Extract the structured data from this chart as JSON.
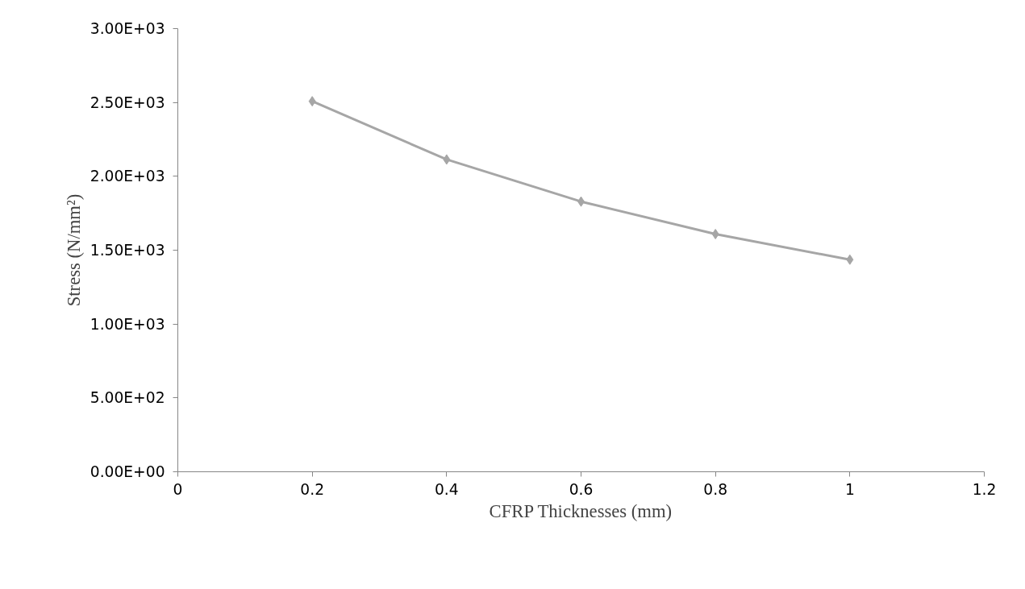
{
  "chart_data": {
    "type": "line",
    "xlabel": "CFRP Thicknesses (mm)",
    "ylabel": "Stress (N/mm²)",
    "x": [
      0.2,
      0.4,
      0.6,
      0.8,
      1.0
    ],
    "series": [
      {
        "color": "#a6a6a6",
        "values": [
          2508,
          2114,
          1829,
          1609,
          1436
        ]
      }
    ],
    "xlim": [
      0,
      1.2
    ],
    "xticks": [
      0,
      {
        "value": 0.2,
        "label": "0.2"
      },
      {
        "value": 0.4,
        "label": "0.4"
      },
      {
        "value": 0.6,
        "label": "0.6"
      },
      {
        "value": 0.8,
        "label": "0.8"
      },
      1,
      {
        "value": 1.2,
        "label": "1.2"
      }
    ],
    "ylim": [
      0,
      3000
    ],
    "yticks": [
      {
        "value": 0,
        "label": "0.00E+00"
      },
      {
        "value": 500,
        "label": "5.00E+02"
      },
      {
        "value": 1000,
        "label": "1.00E+03"
      },
      {
        "value": 1500,
        "label": "1.50E+03"
      },
      {
        "value": 2000,
        "label": "2.00E+03"
      },
      {
        "value": 2500,
        "label": "2.50E+03"
      },
      {
        "value": 3000,
        "label": "3.00E+03"
      }
    ],
    "grid": false,
    "marker": "diamond",
    "line_style": "solid"
  }
}
